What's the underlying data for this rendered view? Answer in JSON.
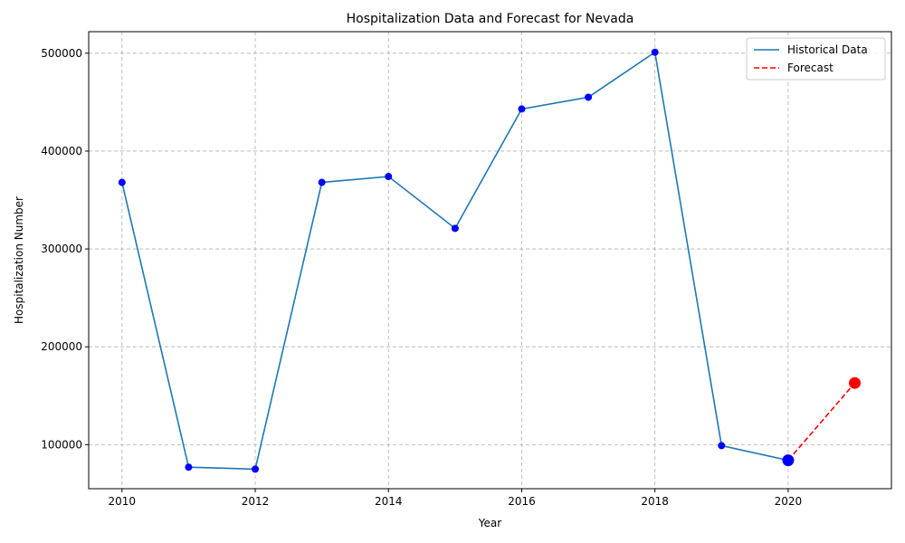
{
  "chart_data": {
    "type": "line",
    "title": "Hospitalization Data and Forecast for Nevada",
    "xlabel": "Year",
    "ylabel": "Hospitalization Number",
    "xlim": [
      2009.5,
      2021.55
    ],
    "ylim": [
      55000,
      522000
    ],
    "x_ticks": [
      2010,
      2012,
      2014,
      2016,
      2018,
      2020
    ],
    "y_ticks": [
      100000,
      200000,
      300000,
      400000,
      500000
    ],
    "grid": true,
    "legend_position": "top-right",
    "series": [
      {
        "name": "Historical Data",
        "style": "solid",
        "color": "#1f77b4",
        "marker_color": "#0000ff",
        "x": [
          2010,
          2011,
          2012,
          2013,
          2014,
          2015,
          2016,
          2017,
          2018,
          2019,
          2020
        ],
        "y": [
          368000,
          77000,
          75000,
          368000,
          374000,
          321000,
          443000,
          455000,
          501000,
          99000,
          84000
        ]
      },
      {
        "name": "Forecast",
        "style": "dashed",
        "color": "#ff0000",
        "x": [
          2020,
          2021
        ],
        "y": [
          84000,
          163000
        ]
      }
    ],
    "highlighted_points": [
      {
        "x": 2020,
        "y": 84000,
        "color": "#0000ff"
      },
      {
        "x": 2021,
        "y": 163000,
        "color": "#ff0000"
      }
    ]
  }
}
